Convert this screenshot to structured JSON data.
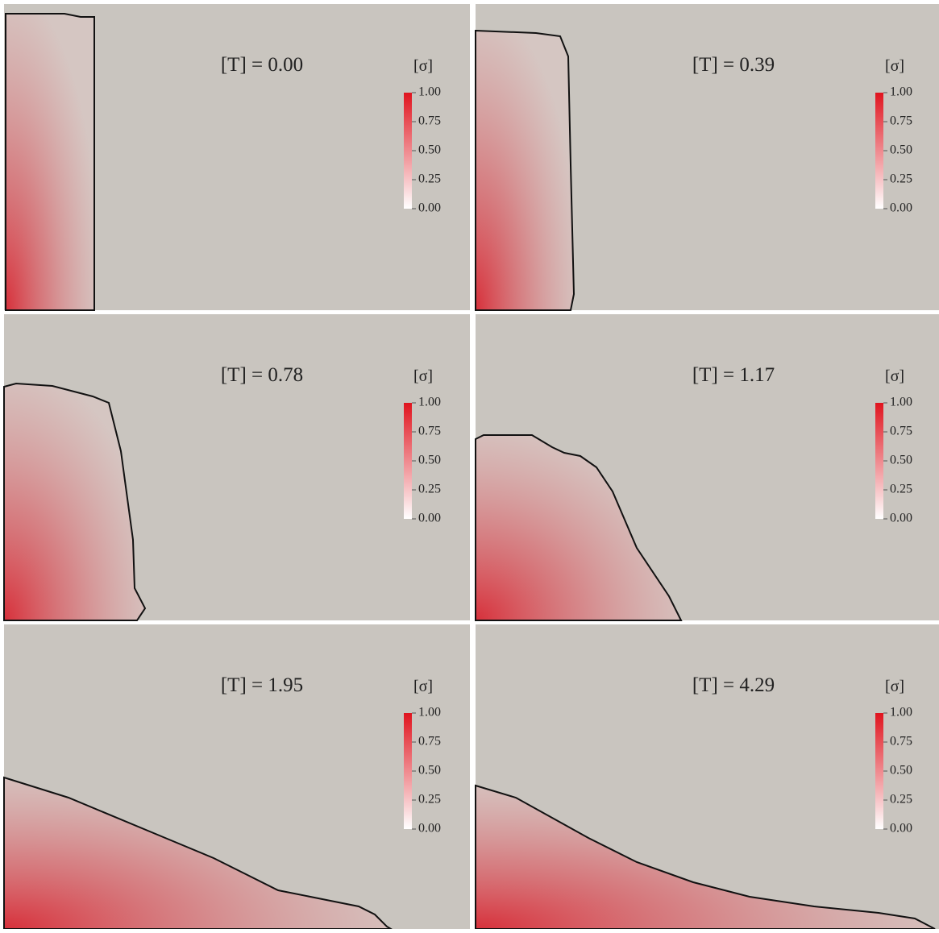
{
  "panels": [
    {
      "label": "[T] = 0.00",
      "colorbar": {
        "title": "[σ]",
        "ticks": [
          "1.00",
          "0.75",
          "0.50",
          "0.25",
          "0.00"
        ]
      }
    },
    {
      "label": "[T] = 0.39",
      "colorbar": {
        "title": "[σ]",
        "ticks": [
          "1.00",
          "0.75",
          "0.50",
          "0.25",
          "0.00"
        ]
      }
    },
    {
      "label": "[T] = 0.78",
      "colorbar": {
        "title": "[σ]",
        "ticks": [
          "1.00",
          "0.75",
          "0.50",
          "0.25",
          "0.00"
        ]
      }
    },
    {
      "label": "[T] = 1.17",
      "colorbar": {
        "title": "[σ]",
        "ticks": [
          "1.00",
          "0.75",
          "0.50",
          "0.25",
          "0.00"
        ]
      }
    },
    {
      "label": "[T] = 1.95",
      "colorbar": {
        "title": "[σ]",
        "ticks": [
          "1.00",
          "0.75",
          "0.50",
          "0.25",
          "0.00"
        ]
      }
    },
    {
      "label": "[T] = 4.29",
      "colorbar": {
        "title": "[σ]",
        "ticks": [
          "1.00",
          "0.75",
          "0.50",
          "0.25",
          "0.00"
        ]
      }
    }
  ]
}
